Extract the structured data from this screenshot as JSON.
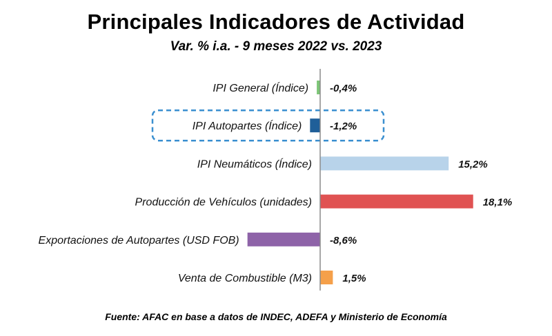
{
  "header": {
    "title": "Principales Indicadores de Actividad",
    "subtitle": "Var. % i.a. - 9 meses 2022 vs. 2023"
  },
  "footer": {
    "source": "Fuente: AFAC en base a datos de INDEC, ADEFA y Ministerio de Economía"
  },
  "chart_data": {
    "type": "bar",
    "orientation": "horizontal",
    "title": "Principales Indicadores de Actividad",
    "subtitle": "Var. % i.a. - 9 meses 2022 vs. 2023",
    "categories": [
      "IPI General (Índice)",
      "IPI Autopartes (Índice)",
      "IPI Neumáticos (Índice)",
      "Producción de Vehículos (unidades)",
      "Exportaciones de Autopartes (USD FOB)",
      "Venta de Combustible (M3)"
    ],
    "values": [
      -0.4,
      -1.2,
      15.2,
      18.1,
      -8.6,
      1.5
    ],
    "value_labels": [
      "-0,4%",
      "-1,2%",
      "15,2%",
      "18,1%",
      "-8,6%",
      "1,5%"
    ],
    "colors": [
      "#7cc576",
      "#1f5f99",
      "#b8d3ea",
      "#e05252",
      "#8e63a8",
      "#f5a04a"
    ],
    "highlighted_category": "IPI Autopartes (Índice)",
    "highlight_color": "#3a8fd0",
    "xlim": [
      -10,
      20
    ],
    "grid": false,
    "legend": "none"
  }
}
